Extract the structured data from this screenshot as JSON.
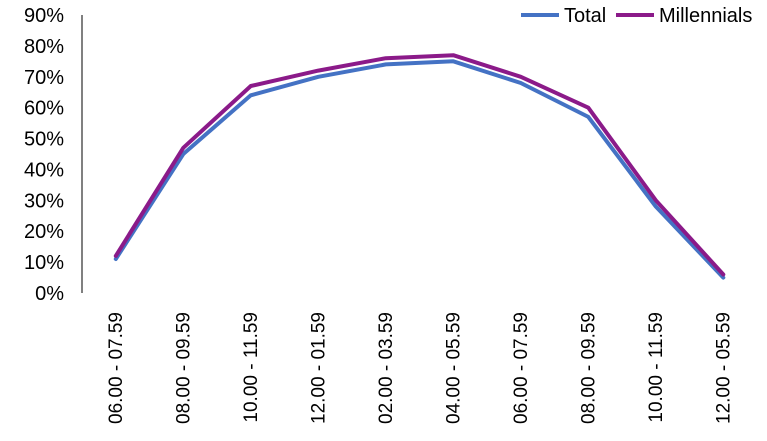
{
  "chart_data": {
    "type": "line",
    "categories": [
      "06.00 - 07.59",
      "08.00 - 09.59",
      "10.00 - 11.59",
      "12.00 - 01.59",
      "02.00 - 03.59",
      "04.00 - 05.59",
      "06.00 - 07.59",
      "08.00 - 09.59",
      "10.00 - 11.59",
      "12.00 - 05.59"
    ],
    "series": [
      {
        "name": "Total",
        "color": "#4472C4",
        "values": [
          11,
          45,
          64,
          70,
          74,
          75,
          68,
          57,
          28,
          5
        ]
      },
      {
        "name": "Millennials",
        "color": "#8B1A89",
        "values": [
          12,
          47,
          67,
          72,
          76,
          77,
          70,
          60,
          30,
          6
        ]
      }
    ],
    "y_ticks": [
      "0%",
      "10%",
      "20%",
      "30%",
      "40%",
      "50%",
      "60%",
      "70%",
      "80%",
      "90%"
    ],
    "ylim": [
      0,
      90
    ],
    "grid": false,
    "legend_position": "top-right"
  }
}
